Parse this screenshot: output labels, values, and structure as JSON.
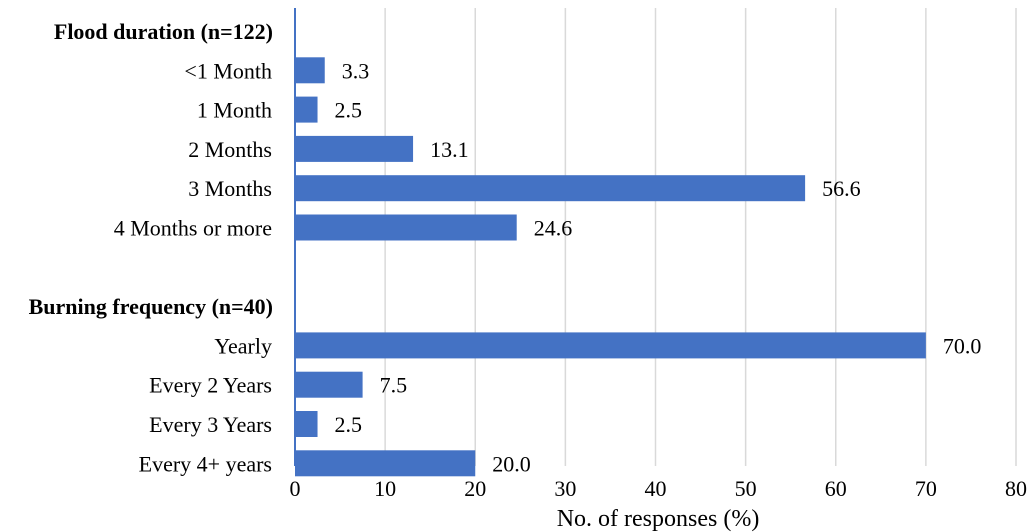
{
  "chart_data": {
    "type": "bar",
    "orientation": "horizontal",
    "xlabel": "No. of responses (%)",
    "xlim": [
      0,
      80
    ],
    "xticks": [
      0,
      10,
      20,
      30,
      40,
      50,
      60,
      70,
      80
    ],
    "grid": true,
    "legend": "none",
    "bar_color": "#4472c4",
    "groups": [
      {
        "label": "Flood duration (n=122)",
        "categories": [
          "<1 Month",
          "1 Month",
          "2 Months",
          "3 Months",
          "4 Months or more"
        ],
        "values": [
          3.3,
          2.5,
          13.1,
          56.6,
          24.6
        ],
        "value_labels": [
          "3.3",
          "2.5",
          "13.1",
          "56.6",
          "24.6"
        ]
      },
      {
        "label": "Burning frequency (n=40)",
        "categories": [
          "Yearly",
          "Every 2 Years",
          "Every 3 Years",
          "Every 4+ years"
        ],
        "values": [
          70.0,
          7.5,
          2.5,
          20.0
        ],
        "value_labels": [
          "70.0",
          "7.5",
          "2.5",
          "20.0"
        ]
      }
    ]
  }
}
